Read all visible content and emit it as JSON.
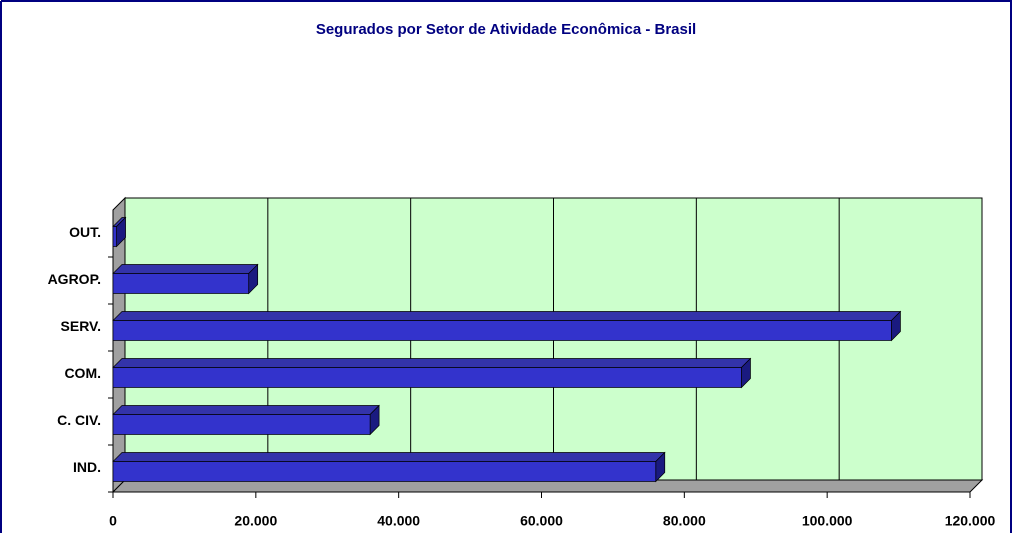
{
  "chart_data": {
    "type": "bar3d",
    "orientation": "horizontal",
    "title": "Segurados por Setor de Atividade Econômica - Brasil",
    "categories": [
      "IND.",
      "C. CIV.",
      "COM.",
      "SERV.",
      "AGROP.",
      "OUT."
    ],
    "values": [
      76000,
      36000,
      88000,
      109000,
      19000,
      500
    ],
    "color": "#3333cc",
    "xlim": [
      0,
      120000
    ],
    "xticks": [
      0,
      {
        "value": 20000,
        "label": "20.000"
      },
      {
        "value": 40000,
        "label": "40.000"
      },
      {
        "value": 60000,
        "label": "60.000"
      },
      {
        "value": 80000,
        "label": "80.000"
      },
      {
        "value": 100000,
        "label": "100.000"
      },
      {
        "value": 120000,
        "label": "120.000"
      }
    ],
    "grid": true
  }
}
